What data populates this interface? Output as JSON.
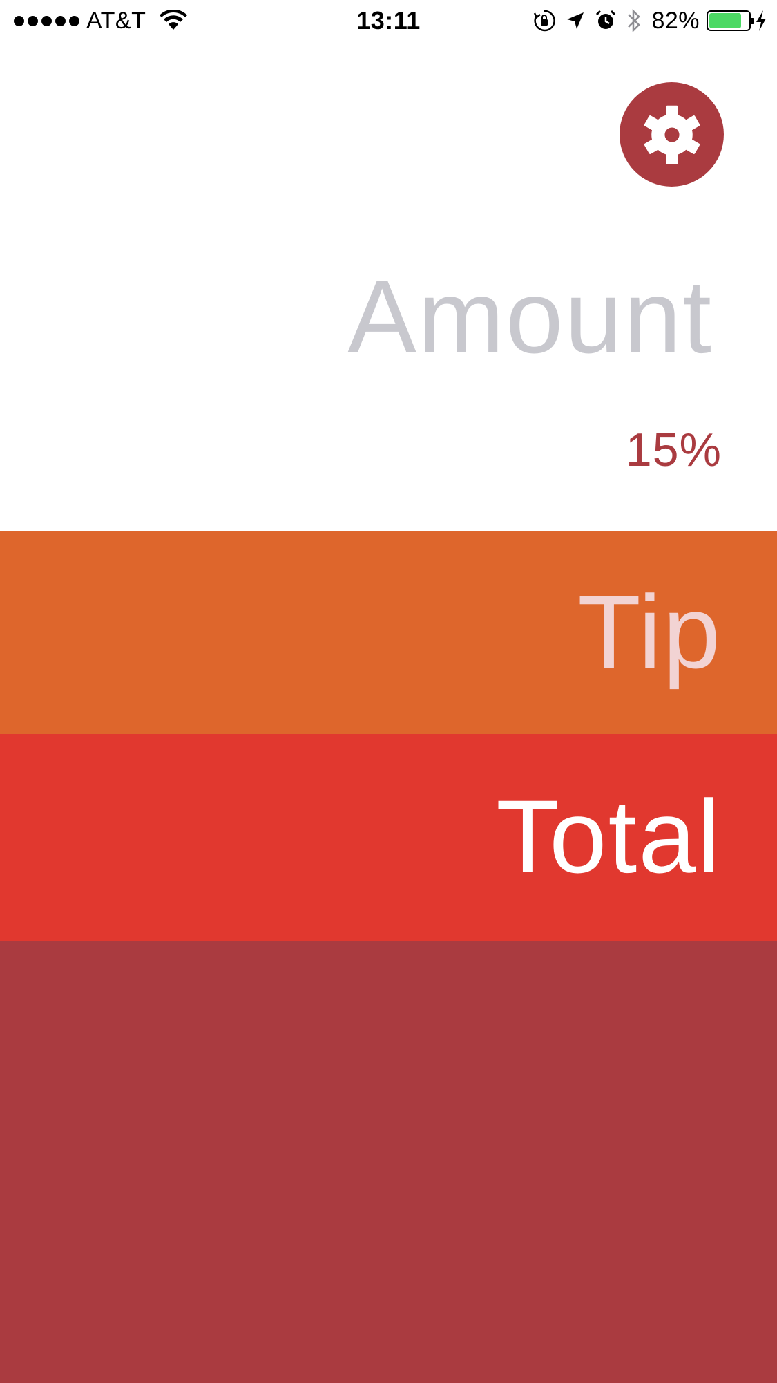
{
  "status_bar": {
    "carrier": "AT&T",
    "time": "13:11",
    "battery_percent": "82%",
    "battery_level": 0.82,
    "icons": [
      "signal-dots-icon",
      "wifi-icon",
      "rotation-lock-icon",
      "location-arrow-icon",
      "alarm-icon",
      "bluetooth-icon",
      "battery-icon",
      "charging-bolt-icon"
    ]
  },
  "settings": {
    "icon": "gear-icon"
  },
  "amount": {
    "placeholder": "Amount"
  },
  "tip_percent": "15%",
  "tip": {
    "label": "Tip"
  },
  "total": {
    "label": "Total"
  },
  "colors": {
    "accent": "#aa3b40",
    "tip_band": "#de662c",
    "total_band": "#e1382f",
    "bottom_band": "#aa3b40",
    "placeholder": "#c8c8ce",
    "tip_label": "#f2d3d3",
    "total_label": "#ffffff",
    "battery_fill": "#4cd964"
  }
}
